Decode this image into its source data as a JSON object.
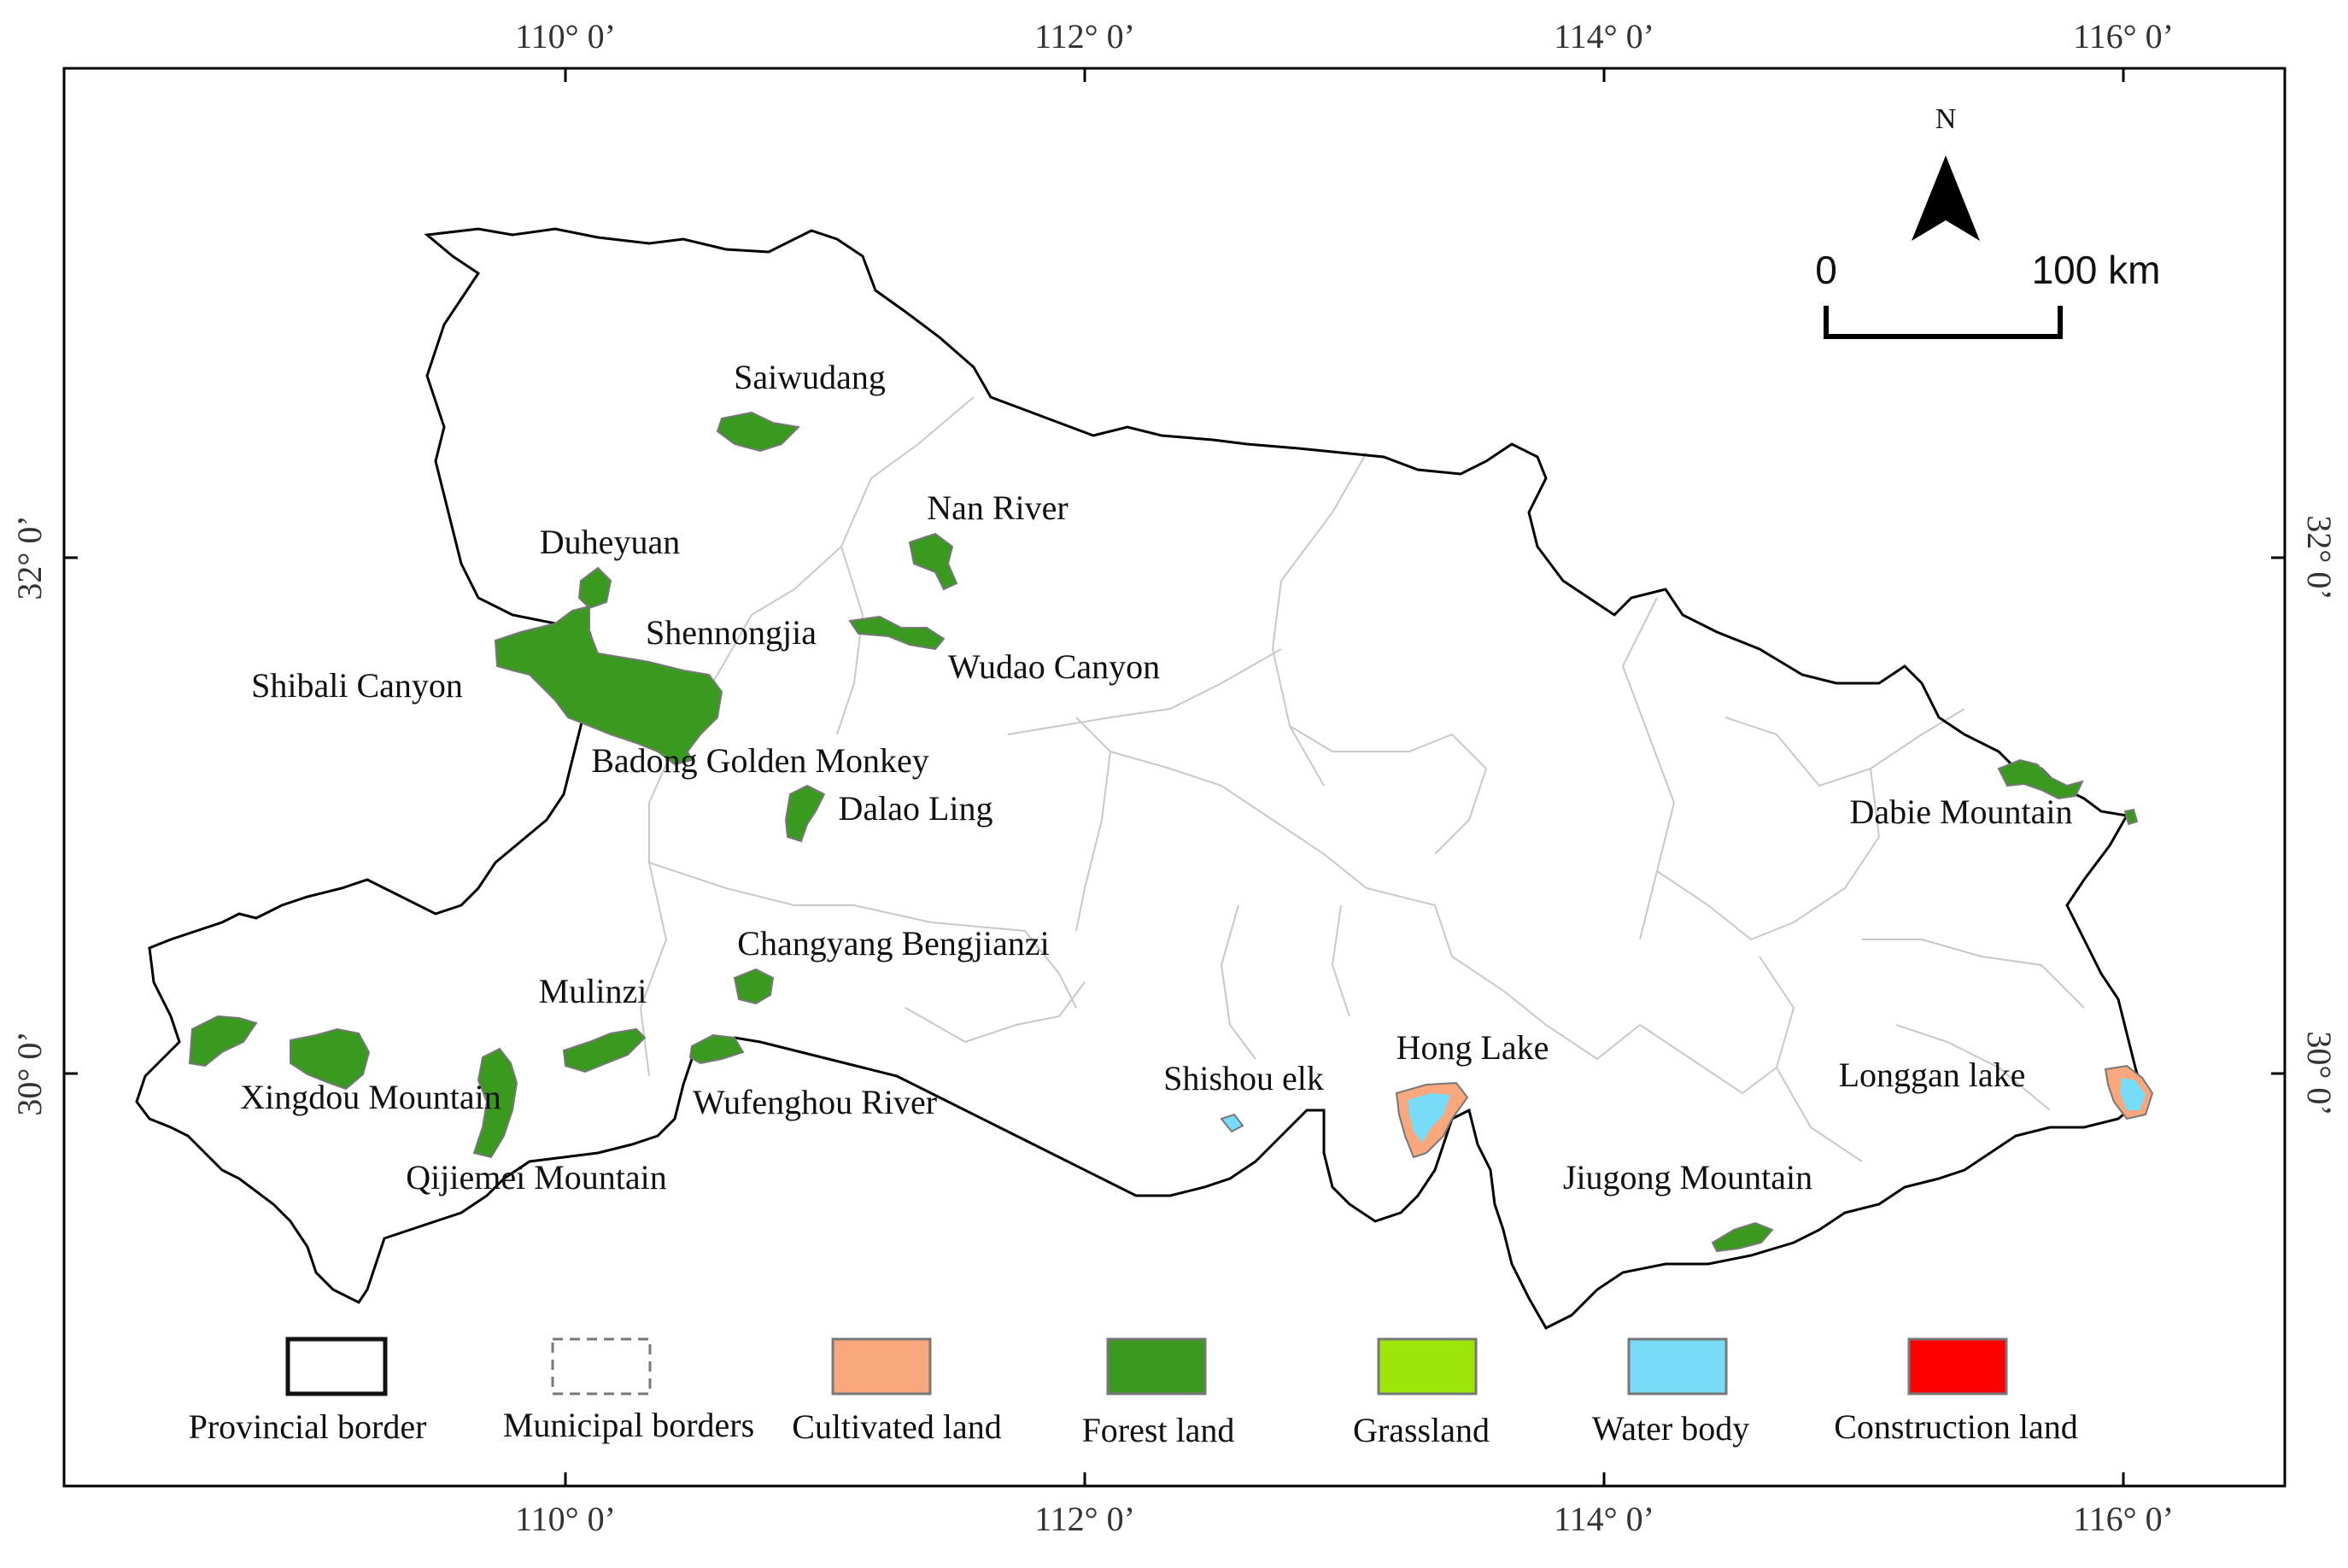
{
  "map": {
    "graticule": {
      "longitudes": [
        "110° 0’",
        "112° 0’",
        "114° 0’",
        "116° 0’"
      ],
      "latitudes": [
        "32° 0’",
        "30° 0’"
      ]
    },
    "north_label": "N",
    "scale": {
      "start": "0",
      "end": "100 km"
    },
    "places": {
      "saiwudang": "Saiwudang",
      "nan_river": "Nan River",
      "duheyuan": "Duheyuan",
      "shennongjia": "Shennongjia",
      "wudao_canyon": "Wudao Canyon",
      "shibali_canyon": "Shibali Canyon",
      "badong": "Badong Golden Monkey",
      "dalao_ling": "Dalao Ling",
      "changyang": "Changyang Bengjianzi",
      "mulinzi": "Mulinzi",
      "xingdou": "Xingdou Mountain",
      "wufenghou": "Wufenghou River",
      "qijiemei": "Qijiemei Mountain",
      "shishou": "Shishou elk",
      "hong_lake": "Hong Lake",
      "jiugong": "Jiugong Mountain",
      "longgan": "Longgan lake",
      "dabie": "Dabie Mountain"
    },
    "legend": {
      "provincial": "Provincial border",
      "municipal": "Municipal borders",
      "cultivated": "Cultivated land",
      "forest": "Forest land",
      "grassland": "Grassland",
      "water": "Water body",
      "construction": "Construction land"
    },
    "colors": {
      "cultivated": "#f9a87e",
      "forest": "#3a9a1f",
      "grassland": "#9ee60a",
      "water": "#78dcf8",
      "construction": "#ff0000"
    }
  }
}
